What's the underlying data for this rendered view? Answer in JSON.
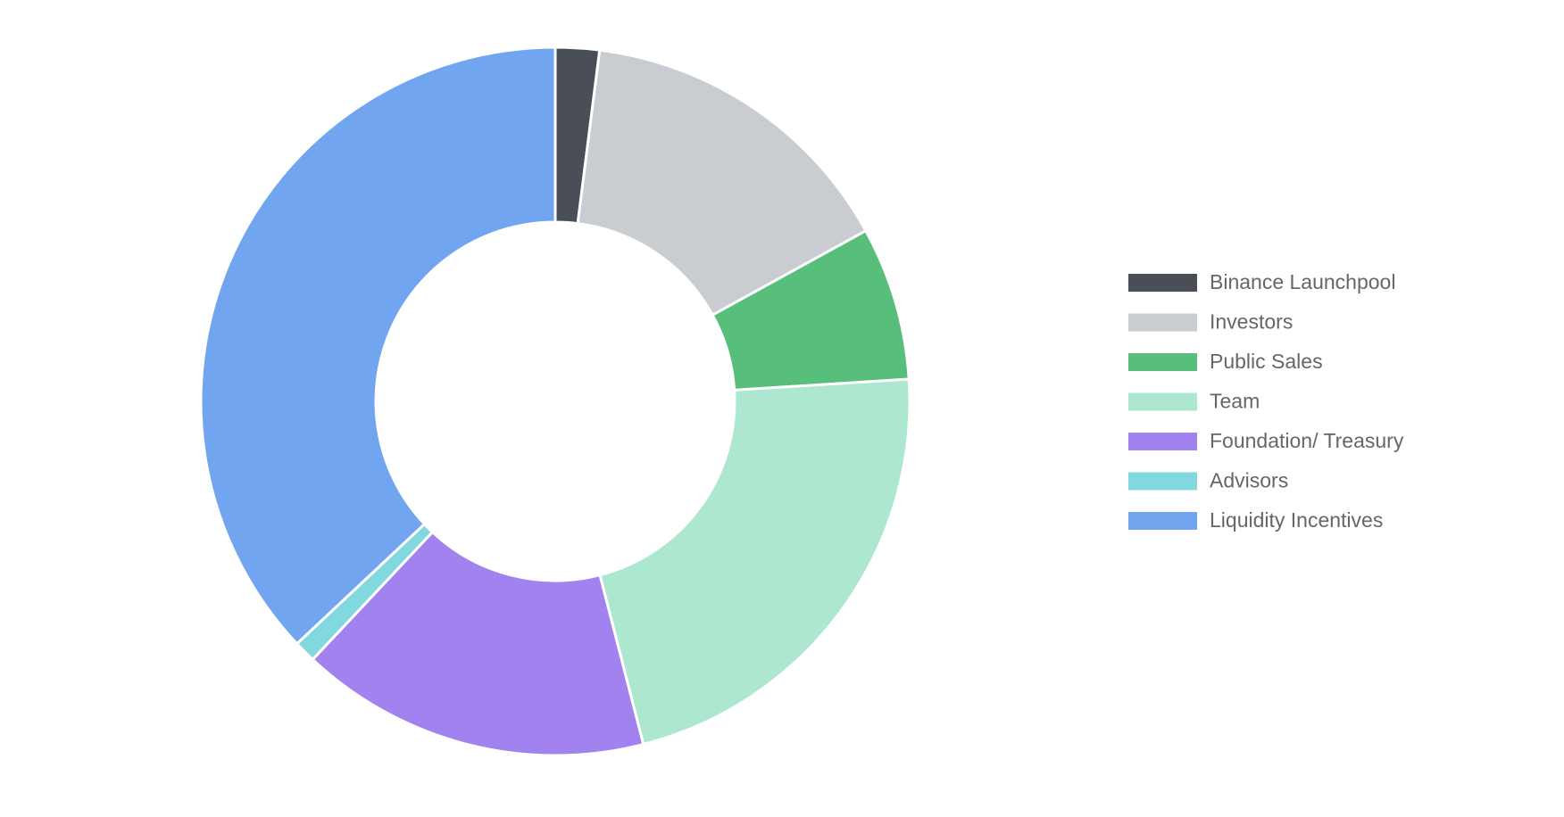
{
  "chart_data": {
    "type": "doughnut",
    "categories": [
      "Binance Launchpool",
      "Investors",
      "Public Sales",
      "Team",
      "Foundation/ Treasury",
      "Advisors",
      "Liquidity Incentives"
    ],
    "values": [
      2,
      15,
      7,
      22,
      16,
      1,
      37
    ],
    "colors": [
      "#4a4e57",
      "#c9ccd0",
      "#57be7b",
      "#aee7cf",
      "#a182ef",
      "#82d8df",
      "#71a5f0"
    ],
    "legend": "right"
  }
}
